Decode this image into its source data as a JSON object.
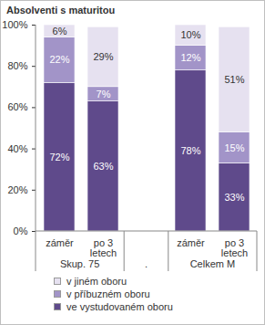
{
  "chart_data": {
    "type": "bar",
    "title": "Absolventi s maturitou",
    "stacked": true,
    "data_labels": true,
    "grid": false,
    "legend": "bottom",
    "categories": [
      "záměr",
      "po 3 letech",
      null,
      "záměr",
      "po 3 letech"
    ],
    "groups": [
      {
        "name": "Skup. 75",
        "categories": [
          "záměr",
          "po 3 letech"
        ]
      },
      {
        "name": ".",
        "categories": [
          null
        ]
      },
      {
        "name": "Celkem M",
        "categories": [
          "záměr",
          "po 3 letech"
        ]
      }
    ],
    "ylim": [
      0,
      100
    ],
    "yticks": [
      {
        "value": 0,
        "label": "0%"
      },
      {
        "value": 20,
        "label": "20%"
      },
      {
        "value": 40,
        "label": "40%"
      },
      {
        "value": 60,
        "label": "60%"
      },
      {
        "value": 80,
        "label": "80%"
      },
      {
        "value": 100,
        "label": "100%"
      }
    ],
    "series": [
      {
        "name": "ve vystudovaném oboru",
        "color": "#5f4a8b",
        "values": [
          72,
          63,
          null,
          78,
          33
        ],
        "value_labels": [
          "72%",
          "63%",
          null,
          "78%",
          "33%"
        ]
      },
      {
        "name": "v příbuzném oboru",
        "color": "#a294c8",
        "values": [
          22,
          7,
          null,
          12,
          15
        ],
        "value_labels": [
          "22%",
          "7%",
          null,
          "12%",
          "15%"
        ]
      },
      {
        "name": "v jiném oboru",
        "color": "#e6e1f0",
        "values": [
          6,
          29,
          null,
          10,
          51
        ],
        "value_labels": [
          "6%",
          "29%",
          null,
          "10%",
          "51%"
        ]
      }
    ]
  }
}
